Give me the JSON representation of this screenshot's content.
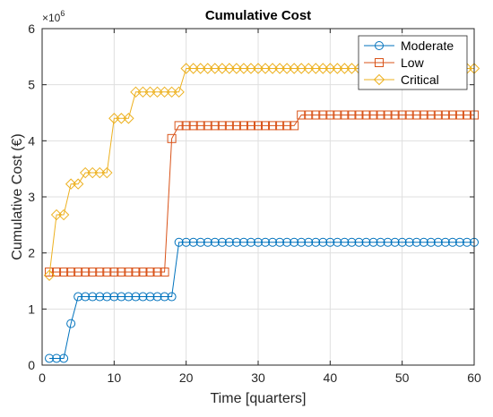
{
  "chart_data": {
    "type": "line",
    "title": "Cumulative Cost",
    "xlabel": "Time [quarters]",
    "ylabel": "Cumulative Cost (€)",
    "xlim": [
      0,
      60
    ],
    "ylim": [
      0,
      6000000
    ],
    "x_ticks": [
      0,
      10,
      20,
      30,
      40,
      50,
      60
    ],
    "x_tick_labels": [
      "0",
      "10",
      "20",
      "30",
      "40",
      "50",
      "60"
    ],
    "y_ticks": [
      0,
      1000000,
      2000000,
      3000000,
      4000000,
      5000000,
      6000000
    ],
    "y_tick_labels": [
      "0",
      "1",
      "2",
      "3",
      "4",
      "5",
      "6"
    ],
    "y_exponent_base": "×10",
    "y_exponent_power": "6",
    "grid": true,
    "legend_position": "top-right",
    "x": [
      1,
      2,
      3,
      4,
      5,
      6,
      7,
      8,
      9,
      10,
      11,
      12,
      13,
      14,
      15,
      16,
      17,
      18,
      19,
      20,
      21,
      22,
      23,
      24,
      25,
      26,
      27,
      28,
      29,
      30,
      31,
      32,
      33,
      34,
      35,
      36,
      37,
      38,
      39,
      40,
      41,
      42,
      43,
      44,
      45,
      46,
      47,
      48,
      49,
      50,
      51,
      52,
      53,
      54,
      55,
      56,
      57,
      58,
      59,
      60
    ],
    "series": [
      {
        "name": "Moderate",
        "color": "#0072BD",
        "marker": "circle",
        "values": [
          120000,
          120000,
          120000,
          740000,
          1220000,
          1220000,
          1220000,
          1220000,
          1220000,
          1220000,
          1220000,
          1220000,
          1220000,
          1220000,
          1220000,
          1220000,
          1220000,
          1220000,
          2190000,
          2190000,
          2190000,
          2190000,
          2190000,
          2190000,
          2190000,
          2190000,
          2190000,
          2190000,
          2190000,
          2190000,
          2190000,
          2190000,
          2190000,
          2190000,
          2190000,
          2190000,
          2190000,
          2190000,
          2190000,
          2190000,
          2190000,
          2190000,
          2190000,
          2190000,
          2190000,
          2190000,
          2190000,
          2190000,
          2190000,
          2190000,
          2190000,
          2190000,
          2190000,
          2190000,
          2190000,
          2190000,
          2190000,
          2190000,
          2190000,
          2190000
        ]
      },
      {
        "name": "Low",
        "color": "#D95319",
        "marker": "square",
        "values": [
          1660000,
          1660000,
          1660000,
          1660000,
          1660000,
          1660000,
          1660000,
          1660000,
          1660000,
          1660000,
          1660000,
          1660000,
          1660000,
          1660000,
          1660000,
          1660000,
          1660000,
          4040000,
          4270000,
          4270000,
          4270000,
          4270000,
          4270000,
          4270000,
          4270000,
          4270000,
          4270000,
          4270000,
          4270000,
          4270000,
          4270000,
          4270000,
          4270000,
          4270000,
          4270000,
          4460000,
          4460000,
          4460000,
          4460000,
          4460000,
          4460000,
          4460000,
          4460000,
          4460000,
          4460000,
          4460000,
          4460000,
          4460000,
          4460000,
          4460000,
          4460000,
          4460000,
          4460000,
          4460000,
          4460000,
          4460000,
          4460000,
          4460000,
          4460000,
          4460000
        ]
      },
      {
        "name": "Critical",
        "color": "#EDB120",
        "marker": "diamond",
        "values": [
          1600000,
          2680000,
          2680000,
          3230000,
          3230000,
          3430000,
          3430000,
          3430000,
          3430000,
          4400000,
          4400000,
          4400000,
          4870000,
          4870000,
          4870000,
          4870000,
          4870000,
          4870000,
          4870000,
          5290000,
          5290000,
          5290000,
          5290000,
          5290000,
          5290000,
          5290000,
          5290000,
          5290000,
          5290000,
          5290000,
          5290000,
          5290000,
          5290000,
          5290000,
          5290000,
          5290000,
          5290000,
          5290000,
          5290000,
          5290000,
          5290000,
          5290000,
          5290000,
          5290000,
          5290000,
          5290000,
          5290000,
          5290000,
          5290000,
          5290000,
          5290000,
          5290000,
          5290000,
          5290000,
          5290000,
          5290000,
          5290000,
          5290000,
          5290000,
          5290000
        ]
      }
    ]
  }
}
